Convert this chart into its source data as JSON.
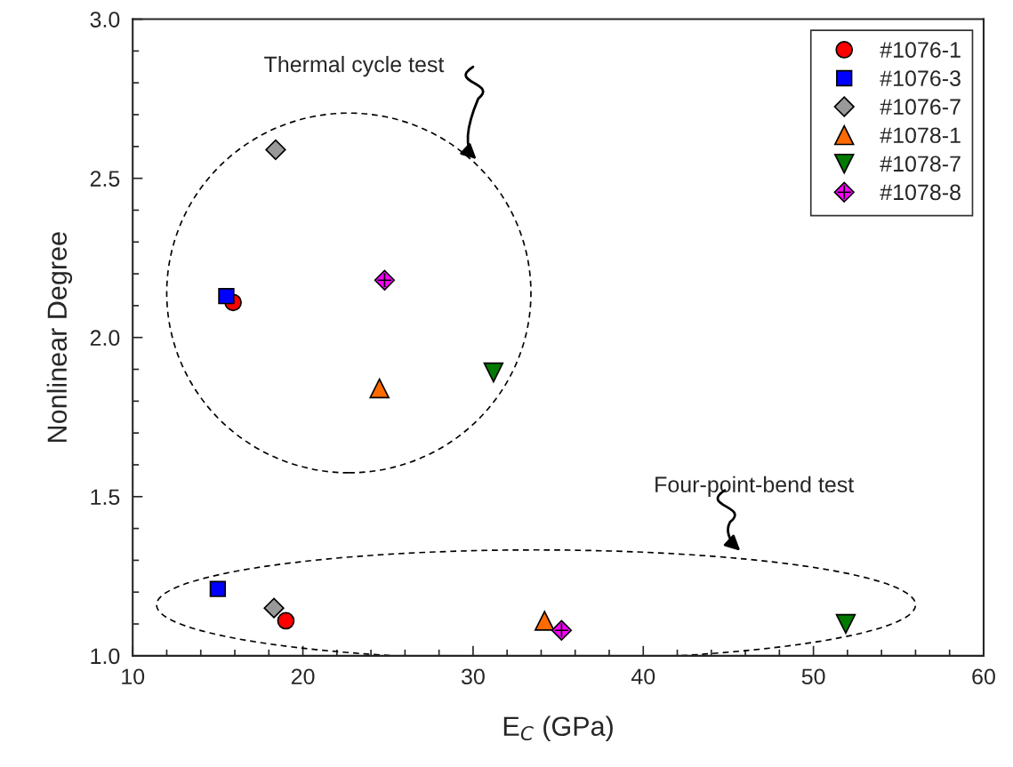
{
  "chart_data": {
    "type": "scatter",
    "xlabel": "E$_{C}$ (GPa)",
    "ylabel": "Nonlinear Degree",
    "xlim": [
      10,
      60
    ],
    "xticks": [
      10,
      20,
      30,
      40,
      50,
      60
    ],
    "ylim": [
      1.0,
      3.0
    ],
    "yticks": [
      {
        "value": 1.0,
        "label": "1.0"
      },
      {
        "value": 1.5,
        "label": "1.5"
      },
      {
        "value": 2.0,
        "label": "2.0"
      },
      {
        "value": 2.5,
        "label": "2.5"
      },
      {
        "value": 3.0,
        "label": "3.0"
      }
    ],
    "grid": false,
    "legend": "top right",
    "annotations": [
      "Thermal cycle test",
      "Four-point-bend test"
    ],
    "series": [
      {
        "name": "#1076-1",
        "color": "#ff0000",
        "marker": "circle",
        "x": [
          15.9,
          19.0
        ],
        "values": [
          2.11,
          1.11
        ]
      },
      {
        "name": "#1076-3",
        "color": "#0000ff",
        "marker": "square",
        "x": [
          15.5,
          15.0
        ],
        "values": [
          2.13,
          1.21
        ]
      },
      {
        "name": "#1076-7",
        "color": "#999999",
        "marker": "diamond",
        "x": [
          18.4,
          18.3
        ],
        "values": [
          2.59,
          1.15
        ]
      },
      {
        "name": "#1078-1",
        "color": "#ff6a00",
        "marker": "triangle",
        "x": [
          24.5,
          34.2
        ],
        "values": [
          1.84,
          1.11
        ]
      },
      {
        "name": "#1078-7",
        "color": "#007a00",
        "marker": "triangle_down",
        "x": [
          31.2,
          51.9
        ],
        "values": [
          1.89,
          1.1
        ]
      },
      {
        "name": "#1078-8",
        "color": "#ff00ff",
        "marker": "diamond_cross",
        "x": [
          24.8,
          35.2
        ],
        "values": [
          2.18,
          1.08
        ]
      }
    ]
  }
}
